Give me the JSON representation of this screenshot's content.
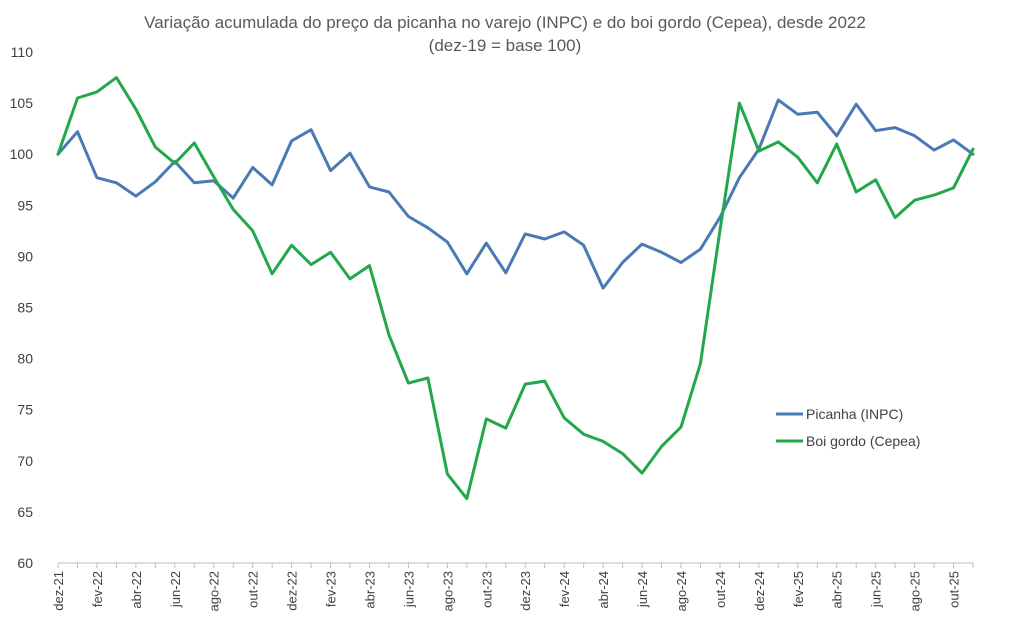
{
  "chart_data": {
    "type": "line",
    "title": "Variação acumulada do preço da picanha no varejo (INPC) e do boi gordo (Cepea), desde 2022",
    "subtitle": "(dez-19 = base 100)",
    "xlabel": "",
    "ylabel": "",
    "ylim": [
      60,
      110
    ],
    "yticks": [
      60,
      65,
      70,
      75,
      80,
      85,
      90,
      95,
      100,
      105,
      110
    ],
    "grid": false,
    "legend_position": "right",
    "x": [
      "dez-21",
      "jan-22",
      "fev-22",
      "mar-22",
      "abr-22",
      "mai-22",
      "jun-22",
      "jul-22",
      "ago-22",
      "set-22",
      "out-22",
      "nov-22",
      "dez-22",
      "jan-23",
      "fev-23",
      "mar-23",
      "abr-23",
      "mai-23",
      "jun-23",
      "jul-23",
      "ago-23",
      "set-23",
      "out-23",
      "nov-23",
      "dez-23",
      "jan-24",
      "fev-24",
      "mar-24",
      "abr-24",
      "mai-24",
      "jun-24",
      "jul-24",
      "ago-24",
      "set-24",
      "out-24",
      "nov-24",
      "dez-24",
      "jan-25",
      "fev-25",
      "mar-25",
      "abr-25",
      "mai-25",
      "jun-25",
      "jul-25",
      "ago-25",
      "set-25",
      "out-25",
      "nov-25"
    ],
    "x_tick_labels": [
      "dez-21",
      "fev-22",
      "abr-22",
      "jun-22",
      "ago-22",
      "out-22",
      "dez-22",
      "fev-23",
      "abr-23",
      "jun-23",
      "ago-23",
      "out-23",
      "dez-23",
      "fev-24",
      "abr-24",
      "jun-24",
      "ago-24",
      "out-24",
      "dez-24",
      "fev-25",
      "abr-25",
      "jun-25",
      "ago-25",
      "out-25"
    ],
    "series": [
      {
        "name": "Picanha (INPC)",
        "color": "#4a7ab4",
        "values": [
          100,
          102.2,
          97.7,
          97.2,
          95.9,
          97.3,
          99.3,
          97.2,
          97.4,
          95.7,
          98.7,
          97.0,
          101.3,
          102.4,
          98.4,
          100.1,
          96.8,
          96.3,
          93.9,
          92.8,
          91.4,
          88.3,
          91.3,
          88.4,
          92.2,
          91.7,
          92.4,
          91.1,
          86.9,
          89.4,
          91.2,
          90.4,
          89.4,
          90.7,
          93.8,
          97.7,
          100.5,
          105.3,
          103.9,
          104.1,
          101.8,
          104.9,
          102.3,
          102.6,
          101.8,
          100.4,
          101.4,
          100.0
        ]
      },
      {
        "name": "Boi gordo (Cepea)",
        "color": "#22a84a",
        "values": [
          100,
          105.5,
          106.1,
          107.5,
          104.4,
          100.7,
          99.1,
          101.1,
          97.8,
          94.6,
          92.5,
          88.3,
          91.1,
          89.2,
          90.4,
          87.8,
          89.1,
          82.3,
          77.6,
          78.1,
          68.7,
          66.3,
          74.1,
          73.2,
          77.5,
          77.8,
          74.2,
          72.6,
          71.9,
          70.7,
          68.8,
          71.4,
          73.3,
          79.5,
          92.5,
          105.0,
          100.3,
          101.2,
          99.7,
          97.2,
          101.0,
          96.3,
          97.5,
          93.8,
          95.5,
          96.0,
          96.7,
          100.5
        ]
      }
    ]
  }
}
